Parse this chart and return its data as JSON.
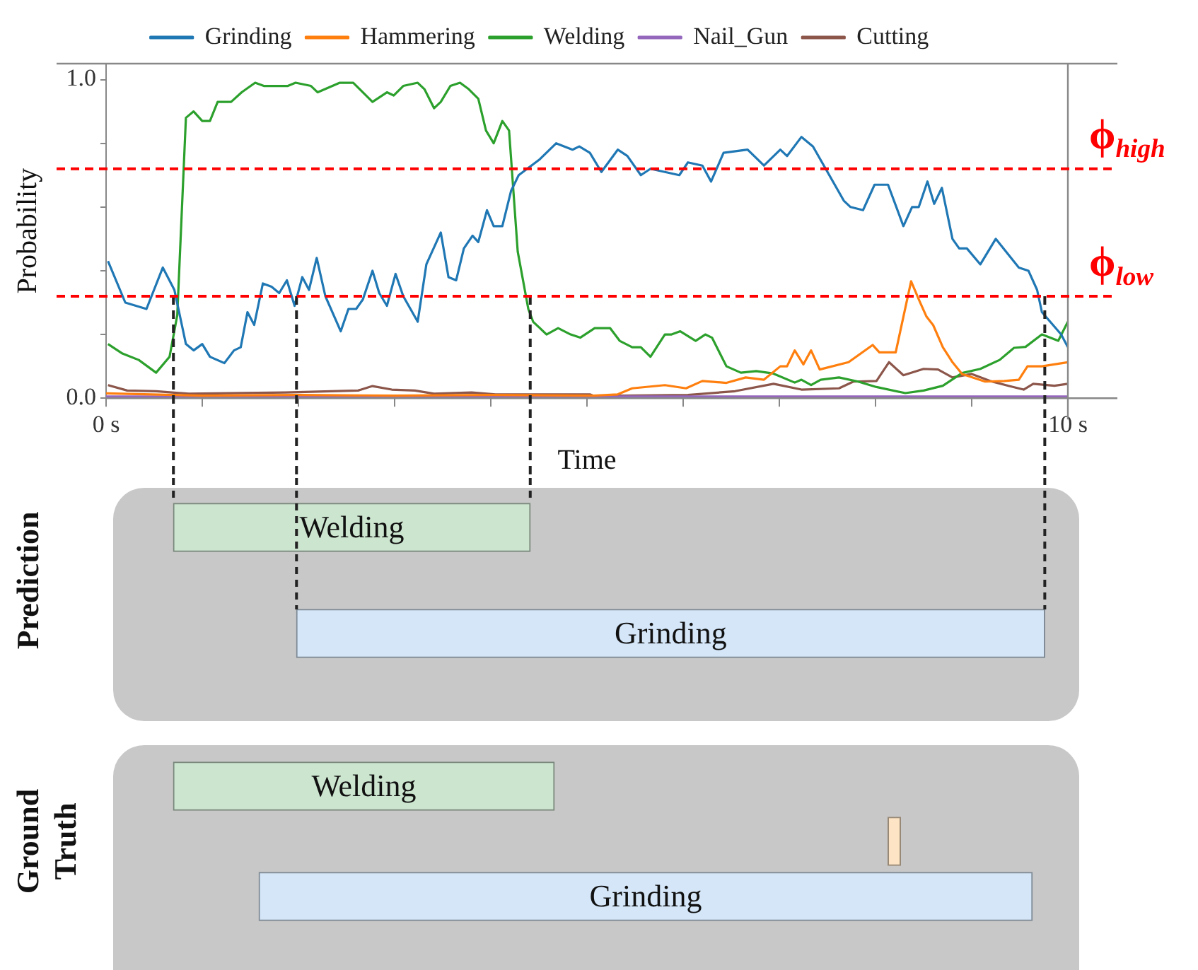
{
  "chart_data": [
    {
      "type": "line",
      "xlabel": "Time",
      "ylabel": "Probability",
      "legend": "top",
      "marker": "none",
      "grid": false,
      "xlim": [
        0,
        10
      ],
      "xticks": [
        {
          "value": 0,
          "label": "0 s"
        },
        {
          "value": 1,
          "label": null
        },
        {
          "value": 2,
          "label": null
        },
        {
          "value": 3,
          "label": null
        },
        {
          "value": 4,
          "label": null
        },
        {
          "value": 5,
          "label": null
        },
        {
          "value": 6,
          "label": null
        },
        {
          "value": 7,
          "label": null
        },
        {
          "value": 8,
          "label": null
        },
        {
          "value": 9,
          "label": null
        },
        {
          "value": 10,
          "label": "10 s"
        }
      ],
      "ylim": [
        0,
        1.05
      ],
      "yticks": [
        {
          "value": 0,
          "label": "0.0"
        },
        {
          "value": 0.2,
          "label": null
        },
        {
          "value": 0.4,
          "label": null
        },
        {
          "value": 0.6,
          "label": null
        },
        {
          "value": 0.8,
          "label": null
        },
        {
          "value": 1,
          "label": "1.0"
        }
      ],
      "ref_lines": [
        {
          "axis": "y",
          "value": 0.72,
          "label": "ϕ$_{high}$",
          "color": "#ff0000",
          "line_style": "dashed"
        },
        {
          "axis": "y",
          "value": 0.32,
          "label": "ϕ$_{low}$",
          "color": "#ff0000",
          "line_style": "dashed"
        },
        {
          "axis": "x",
          "value": 0.7,
          "color": "#222222",
          "line_style": "dashed"
        },
        {
          "axis": "x",
          "value": 1.98,
          "color": "#222222",
          "line_style": "dashed"
        },
        {
          "axis": "x",
          "value": 4.41,
          "color": "#222222",
          "line_style": "dashed"
        },
        {
          "axis": "x",
          "value": 9.76,
          "color": "#222222",
          "line_style": "dashed"
        }
      ],
      "series": [
        {
          "name": "Grinding",
          "color": "#1f77b4",
          "x": [
            0.02,
            0.2,
            0.42,
            0.59,
            0.71,
            0.83,
            0.91,
            1.0,
            1.08,
            1.23,
            1.33,
            1.4,
            1.47,
            1.54,
            1.63,
            1.72,
            1.8,
            1.88,
            1.96,
            2.04,
            2.11,
            2.19,
            2.28,
            2.44,
            2.52,
            2.6,
            2.67,
            2.77,
            2.84,
            2.92,
            3.01,
            3.09,
            3.24,
            3.33,
            3.48,
            3.56,
            3.64,
            3.72,
            3.81,
            3.87,
            3.96,
            4.03,
            4.12,
            4.21,
            4.29,
            4.51,
            4.68,
            4.85,
            4.92,
            5.03,
            5.15,
            5.32,
            5.42,
            5.56,
            5.66,
            5.96,
            6.05,
            6.2,
            6.29,
            6.42,
            6.67,
            6.84,
            7.01,
            7.08,
            7.23,
            7.35,
            7.67,
            7.74,
            7.87,
            7.99,
            8.13,
            8.29,
            8.38,
            8.45,
            8.54,
            8.61,
            8.69,
            8.8,
            8.87,
            8.95,
            9.09,
            9.25,
            9.49,
            9.59,
            9.68,
            9.73,
            9.93,
            10
          ],
          "values": [
            0.43,
            0.3,
            0.28,
            0.41,
            0.34,
            0.17,
            0.15,
            0.17,
            0.13,
            0.11,
            0.15,
            0.16,
            0.27,
            0.23,
            0.36,
            0.35,
            0.33,
            0.37,
            0.29,
            0.38,
            0.34,
            0.44,
            0.32,
            0.21,
            0.28,
            0.28,
            0.31,
            0.4,
            0.33,
            0.29,
            0.39,
            0.32,
            0.24,
            0.42,
            0.52,
            0.38,
            0.37,
            0.47,
            0.51,
            0.49,
            0.59,
            0.54,
            0.54,
            0.65,
            0.7,
            0.75,
            0.8,
            0.78,
            0.79,
            0.77,
            0.71,
            0.78,
            0.76,
            0.7,
            0.72,
            0.7,
            0.74,
            0.73,
            0.68,
            0.77,
            0.78,
            0.73,
            0.78,
            0.76,
            0.82,
            0.79,
            0.62,
            0.6,
            0.59,
            0.67,
            0.67,
            0.54,
            0.6,
            0.6,
            0.68,
            0.61,
            0.66,
            0.5,
            0.47,
            0.47,
            0.42,
            0.5,
            0.41,
            0.4,
            0.34,
            0.27,
            0.2,
            0.16
          ]
        },
        {
          "name": "Hammering",
          "color": "#ff7f0e",
          "x": [
            0,
            1,
            2,
            3,
            4,
            5.07,
            5.32,
            5.47,
            5.81,
            6.03,
            6.2,
            6.45,
            6.65,
            6.84,
            7.01,
            7.08,
            7.16,
            7.25,
            7.33,
            7.42,
            7.72,
            7.97,
            8.04,
            8.21,
            8.37,
            8.46,
            8.53,
            8.6,
            8.7,
            8.8,
            8.9,
            9.14,
            9.34,
            9.49,
            9.58,
            9.73,
            10
          ],
          "values": [
            0.015,
            0.008,
            0.01,
            0.008,
            0.01,
            0.008,
            0.012,
            0.031,
            0.041,
            0.031,
            0.054,
            0.048,
            0.065,
            0.058,
            0.1,
            0.1,
            0.15,
            0.106,
            0.15,
            0.09,
            0.113,
            0.167,
            0.144,
            0.144,
            0.367,
            0.303,
            0.256,
            0.229,
            0.16,
            0.113,
            0.076,
            0.052,
            0.054,
            0.058,
            0.1,
            0.1,
            0.113
          ]
        },
        {
          "name": "Welding",
          "color": "#2ca02c",
          "x": [
            0.02,
            0.17,
            0.34,
            0.52,
            0.66,
            0.74,
            0.83,
            0.91,
            1.0,
            1.08,
            1.16,
            1.3,
            1.41,
            1.55,
            1.64,
            1.74,
            1.89,
            1.97,
            2.13,
            2.2,
            2.43,
            2.57,
            2.77,
            2.92,
            2.99,
            3.09,
            3.24,
            3.31,
            3.41,
            3.48,
            3.58,
            3.68,
            3.77,
            3.87,
            3.95,
            4.03,
            4.12,
            4.19,
            4.28,
            4.39,
            4.44,
            4.58,
            4.7,
            4.83,
            4.93,
            5.08,
            5.17,
            5.24,
            5.34,
            5.47,
            5.56,
            5.66,
            5.81,
            5.88,
            5.97,
            6.13,
            6.23,
            6.3,
            6.45,
            6.6,
            6.76,
            6.93,
            7.16,
            7.23,
            7.33,
            7.43,
            7.62,
            7.82,
            8.01,
            8.31,
            8.5,
            8.7,
            8.9,
            9.09,
            9.29,
            9.44,
            9.56,
            9.73,
            9.9,
            10
          ],
          "values": [
            0.17,
            0.14,
            0.12,
            0.08,
            0.13,
            0.26,
            0.88,
            0.9,
            0.87,
            0.87,
            0.93,
            0.93,
            0.96,
            0.99,
            0.98,
            0.98,
            0.98,
            0.99,
            0.98,
            0.96,
            0.99,
            0.99,
            0.93,
            0.96,
            0.95,
            0.98,
            0.99,
            0.97,
            0.91,
            0.93,
            0.98,
            0.99,
            0.97,
            0.94,
            0.84,
            0.8,
            0.87,
            0.84,
            0.46,
            0.28,
            0.24,
            0.2,
            0.22,
            0.2,
            0.19,
            0.22,
            0.22,
            0.22,
            0.18,
            0.16,
            0.16,
            0.13,
            0.2,
            0.2,
            0.21,
            0.18,
            0.2,
            0.19,
            0.1,
            0.08,
            0.085,
            0.078,
            0.049,
            0.058,
            0.041,
            0.058,
            0.065,
            0.052,
            0.035,
            0.016,
            0.024,
            0.039,
            0.079,
            0.092,
            0.12,
            0.158,
            0.161,
            0.2,
            0.18,
            0.24
          ]
        },
        {
          "name": "Nail_Gun",
          "color": "#9467bd",
          "x": [
            0,
            10
          ],
          "values": [
            0.005,
            0.005
          ]
        },
        {
          "name": "Cutting",
          "color": "#8c564b",
          "x": [
            0.02,
            0.22,
            0.52,
            0.86,
            1.86,
            2.62,
            2.77,
            2.97,
            3.21,
            3.41,
            3.8,
            4.05,
            5.03,
            5.07,
            6.05,
            6.54,
            6.94,
            7.23,
            7.62,
            7.77,
            8.01,
            8.14,
            8.29,
            8.5,
            8.65,
            8.8,
            9.0,
            9.19,
            9.39,
            9.54,
            9.64,
            9.86,
            10
          ],
          "values": [
            0.041,
            0.024,
            0.022,
            0.014,
            0.018,
            0.024,
            0.038,
            0.027,
            0.024,
            0.014,
            0.018,
            0.012,
            0.012,
            0.007,
            0.01,
            0.022,
            0.045,
            0.027,
            0.031,
            0.052,
            0.054,
            0.113,
            0.072,
            0.092,
            0.09,
            0.065,
            0.076,
            0.054,
            0.038,
            0.027,
            0.045,
            0.039,
            0.045
          ]
        }
      ]
    },
    {
      "type": "bar",
      "orientation": "horizontal",
      "ylabel": "Prediction",
      "tick_labels": false,
      "xlim": [
        0,
        10
      ],
      "categories": [
        "Welding",
        "Grinding"
      ],
      "base": [
        0.7,
        1.98
      ],
      "values": [
        3.71,
        7.78
      ],
      "colors": [
        "#cce5cf",
        "#d4e6f8"
      ]
    },
    {
      "type": "bar",
      "orientation": "horizontal",
      "ylabel": "Ground Truth",
      "tick_labels": false,
      "xlim": [
        0,
        10
      ],
      "categories": [
        "Welding",
        null,
        "Grinding"
      ],
      "base": [
        0.7,
        8.13,
        1.59
      ],
      "values": [
        3.96,
        0.13,
        8.04
      ],
      "colors": [
        "#cce5cf",
        "#fde4c4",
        "#d4e6f8"
      ]
    }
  ]
}
